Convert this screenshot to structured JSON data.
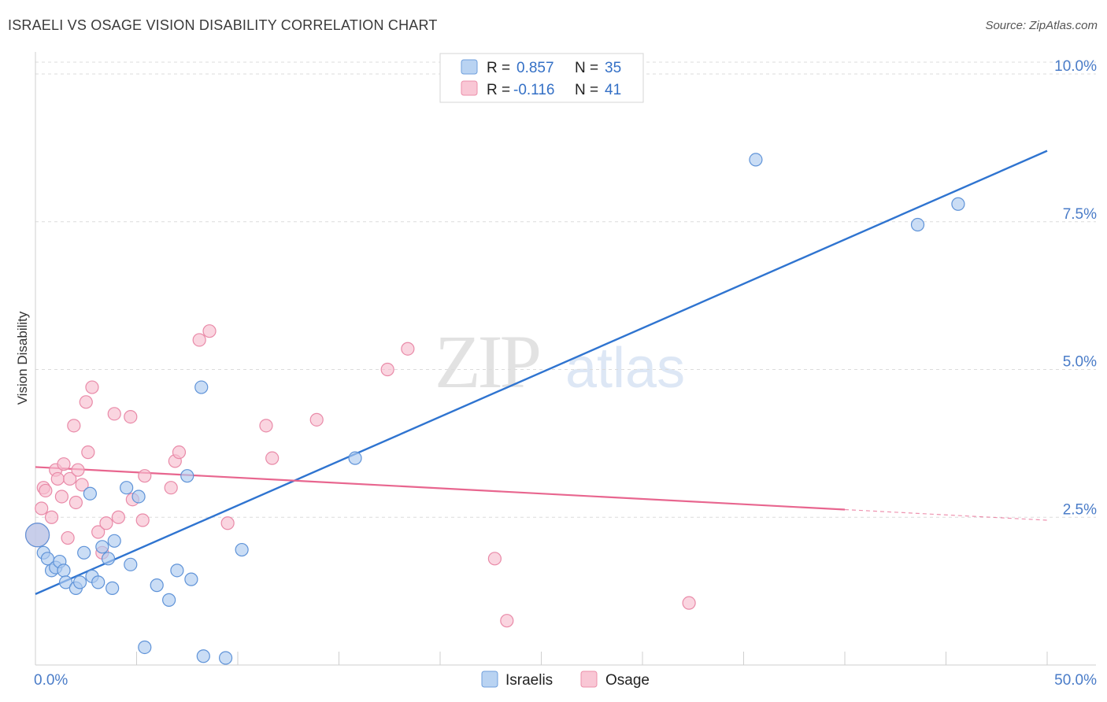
{
  "header": {
    "title": "ISRAELI VS OSAGE VISION DISABILITY CORRELATION CHART",
    "source": "Source: ZipAtlas.com"
  },
  "watermark": {
    "zip": "ZIP",
    "atlas": "atlas"
  },
  "legend_top": [
    {
      "r_label": "R =",
      "r_value": "0.857",
      "n_label": "N =",
      "n_value": "35",
      "fill": "#b9d3f2",
      "stroke": "#6f9fdc"
    },
    {
      "r_label": "R =",
      "r_value": "-0.116",
      "n_label": "N =",
      "n_value": "41",
      "fill": "#f9c7d5",
      "stroke": "#ec8faa"
    }
  ],
  "colors": {
    "israelis_fill": "#aecbf0",
    "israelis_stroke": "#5f93d8",
    "israelis_line": "#2f74d0",
    "osage_fill": "#f7bfd0",
    "osage_stroke": "#e98aa8",
    "osage_line": "#e8668f",
    "value_text": "#3470c6",
    "grid": "#dcdcdc"
  },
  "chart_data": {
    "type": "scatter",
    "title": "ISRAELI VS OSAGE VISION DISABILITY CORRELATION CHART",
    "xlabel": "",
    "ylabel": "Vision Disability",
    "xlim": [
      0,
      50
    ],
    "ylim": [
      0,
      10.2
    ],
    "x_tick_labels": [
      {
        "value": 0,
        "label": "0.0%"
      },
      {
        "value": 50,
        "label": "50.0%"
      }
    ],
    "y_tick_labels": [
      {
        "value": 2.5,
        "label": "2.5%"
      },
      {
        "value": 5.0,
        "label": "5.0%"
      },
      {
        "value": 7.5,
        "label": "7.5%"
      },
      {
        "value": 10.0,
        "label": "10.0%"
      }
    ],
    "legend": [
      "Israelis",
      "Osage"
    ],
    "series": [
      {
        "name": "Israelis",
        "R": 0.857,
        "N": 35,
        "trend": {
          "x": [
            0,
            50
          ],
          "y": [
            1.2,
            8.7
          ],
          "dashed_from": null
        },
        "points": [
          [
            0.1,
            2.2
          ],
          [
            0.4,
            1.9
          ],
          [
            0.6,
            1.8
          ],
          [
            0.8,
            1.6
          ],
          [
            1.0,
            1.65
          ],
          [
            1.2,
            1.75
          ],
          [
            1.4,
            1.6
          ],
          [
            1.5,
            1.4
          ],
          [
            2.0,
            1.3
          ],
          [
            2.2,
            1.4
          ],
          [
            2.4,
            1.9
          ],
          [
            2.7,
            2.9
          ],
          [
            2.8,
            1.5
          ],
          [
            3.1,
            1.4
          ],
          [
            3.3,
            2.0
          ],
          [
            3.6,
            1.8
          ],
          [
            3.8,
            1.3
          ],
          [
            3.9,
            2.1
          ],
          [
            4.5,
            3.0
          ],
          [
            4.7,
            1.7
          ],
          [
            5.1,
            2.85
          ],
          [
            5.4,
            0.3
          ],
          [
            6.0,
            1.35
          ],
          [
            6.6,
            1.1
          ],
          [
            7.0,
            1.6
          ],
          [
            7.5,
            3.2
          ],
          [
            7.7,
            1.45
          ],
          [
            8.2,
            4.7
          ],
          [
            8.3,
            0.15
          ],
          [
            9.4,
            0.12
          ],
          [
            10.2,
            1.95
          ],
          [
            15.8,
            3.5
          ],
          [
            35.6,
            8.55
          ],
          [
            43.6,
            7.45
          ],
          [
            45.6,
            7.8
          ]
        ]
      },
      {
        "name": "Osage",
        "R": -0.116,
        "N": 41,
        "trend": {
          "x": [
            0,
            50
          ],
          "y": [
            3.35,
            2.45
          ],
          "dashed_from": 40
        },
        "points": [
          [
            0.1,
            2.2
          ],
          [
            0.3,
            2.65
          ],
          [
            0.4,
            3.0
          ],
          [
            0.5,
            2.95
          ],
          [
            0.8,
            2.5
          ],
          [
            1.0,
            3.3
          ],
          [
            1.1,
            3.15
          ],
          [
            1.3,
            2.85
          ],
          [
            1.4,
            3.4
          ],
          [
            1.6,
            2.15
          ],
          [
            1.7,
            3.15
          ],
          [
            1.9,
            4.05
          ],
          [
            2.0,
            2.75
          ],
          [
            2.1,
            3.3
          ],
          [
            2.3,
            3.05
          ],
          [
            2.5,
            4.45
          ],
          [
            2.6,
            3.6
          ],
          [
            2.8,
            4.7
          ],
          [
            3.1,
            2.25
          ],
          [
            3.3,
            1.9
          ],
          [
            3.5,
            2.4
          ],
          [
            3.9,
            4.25
          ],
          [
            4.1,
            2.5
          ],
          [
            4.7,
            4.2
          ],
          [
            4.8,
            2.8
          ],
          [
            5.3,
            2.45
          ],
          [
            5.4,
            3.2
          ],
          [
            6.7,
            3.0
          ],
          [
            6.9,
            3.45
          ],
          [
            7.1,
            3.6
          ],
          [
            8.1,
            5.5
          ],
          [
            8.6,
            5.65
          ],
          [
            9.5,
            2.4
          ],
          [
            11.4,
            4.05
          ],
          [
            11.7,
            3.5
          ],
          [
            13.9,
            4.15
          ],
          [
            17.4,
            5.0
          ],
          [
            18.4,
            5.35
          ],
          [
            22.7,
            1.8
          ],
          [
            23.3,
            0.75
          ],
          [
            32.3,
            1.05
          ]
        ]
      }
    ]
  },
  "legend_bottom": [
    {
      "label": "Israelis",
      "fill": "#b9d3f2",
      "stroke": "#6f9fdc"
    },
    {
      "label": "Osage",
      "fill": "#f9c7d5",
      "stroke": "#ec8faa"
    }
  ]
}
